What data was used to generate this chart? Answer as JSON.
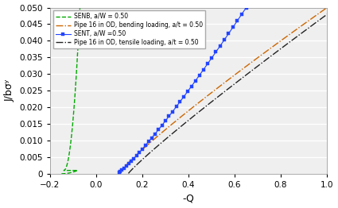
{
  "xlabel": "-Q",
  "ylabel": "J/bσʸ",
  "xlim": [
    -0.2,
    1.0
  ],
  "ylim": [
    0,
    0.05
  ],
  "xticks": [
    -0.2,
    0.0,
    0.2,
    0.4,
    0.6,
    0.8,
    1.0
  ],
  "ytick_vals": [
    0,
    0.005,
    0.01,
    0.015,
    0.02,
    0.025,
    0.03,
    0.035,
    0.04,
    0.045,
    0.05
  ],
  "ytick_labels": [
    "0",
    "0.005",
    "0.010",
    "0.015",
    "0.020",
    "0.025",
    "0.030",
    "0.035",
    "0.040",
    "0.045",
    "0.050"
  ],
  "curves": [
    {
      "label": "SENB, a/W = 0.50",
      "color": "#00aa00",
      "linestyle": "--",
      "marker": "None",
      "linewidth": 1.0
    },
    {
      "label": "Pipe 16 in OD, bending loading, a/t = 0.50",
      "color": "#cc6600",
      "linestyle": "-.",
      "marker": "None",
      "linewidth": 1.0
    },
    {
      "label": "SENT, a/W =0.50",
      "color": "#2244ff",
      "linestyle": "-",
      "marker": "s",
      "markersize": 3.5,
      "linewidth": 0.8
    },
    {
      "label": "Pipe 16 in OD, tensile loading, a/t = 0.50",
      "color": "#222222",
      "linestyle": "-.",
      "marker": "None",
      "linewidth": 1.0
    }
  ],
  "background_color": "#efefef",
  "grid_color": "#ffffff",
  "tick_fontsize": 7.5,
  "label_fontsize": 9,
  "legend_fontsize": 5.5
}
